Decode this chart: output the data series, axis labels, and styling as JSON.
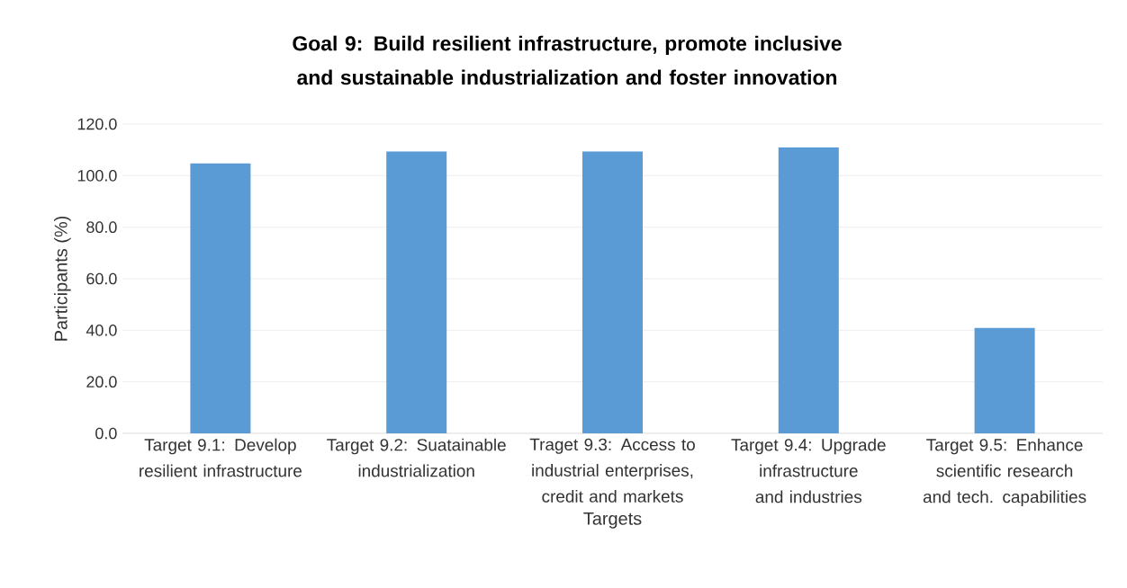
{
  "chart_data": {
    "type": "bar",
    "title": "Goal 9: Build resilient infrastructure, promote inclusive and sustainable industrialization and foster innovation",
    "xlabel": "Targets",
    "ylabel": "Participants (%)",
    "categories": [
      "Target 9.1:  Develop resilient infrastructure",
      "Target 9.2: Suatainable industrialization",
      "Traget 9.3: Access to industrial enterprises, credit and markets",
      "Target 9.4: Upgrade infrastructure and industries",
      "Target 9.5: Enhance scientific research and tech. capabilities"
    ],
    "values": [
      104.7,
      109.4,
      109.4,
      110.9,
      40.9
    ],
    "color": "#5b9bd5",
    "ylim": [
      0,
      120
    ],
    "yticks": [
      {
        "value": 0,
        "label": "0.0"
      },
      {
        "value": 20,
        "label": "20.0"
      },
      {
        "value": 40,
        "label": "40.0"
      },
      {
        "value": 60,
        "label": "60.0"
      },
      {
        "value": 80,
        "label": "80.0"
      },
      {
        "value": 100,
        "label": "100.0"
      },
      {
        "value": 120,
        "label": "120.0"
      }
    ],
    "grid": "y"
  }
}
